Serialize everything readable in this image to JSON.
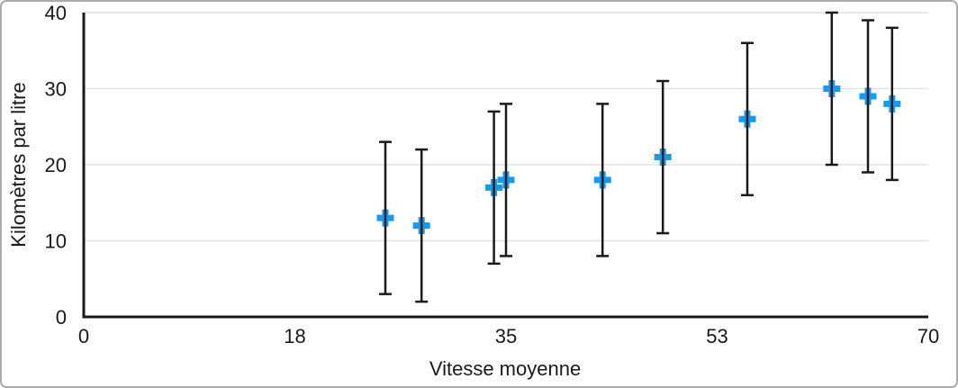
{
  "figure": {
    "background": "#FFFFFF",
    "border_color": "#ABABAB"
  },
  "chart_data": {
    "type": "scatter",
    "title": "",
    "xlabel": "Vitesse moyenne",
    "ylabel": "Kilomètres par litre",
    "xlim": [
      0,
      70
    ],
    "ylim": [
      0,
      40
    ],
    "x_tick_labels": [
      "0",
      "18",
      "35",
      "53",
      "70"
    ],
    "y_tick_labels": [
      "0",
      "10",
      "20",
      "30",
      "40"
    ],
    "grid": "horizontal-only",
    "legend": false,
    "colors": {
      "marker": "#129BF2",
      "error_bar": "#1A1A1A",
      "axis": "#1A1A1A",
      "gridline": "#E2E2E2",
      "text": "#1A1A1A"
    },
    "series": [
      {
        "marker_shape": "plus",
        "error_bars": {
          "direction": "y",
          "plus": 10,
          "minus": 10
        },
        "points": [
          {
            "x": 25,
            "y": 13
          },
          {
            "x": 28,
            "y": 12
          },
          {
            "x": 34,
            "y": 17
          },
          {
            "x": 35,
            "y": 18
          },
          {
            "x": 43,
            "y": 18
          },
          {
            "x": 48,
            "y": 21
          },
          {
            "x": 55,
            "y": 26
          },
          {
            "x": 62,
            "y": 30
          },
          {
            "x": 65,
            "y": 29
          },
          {
            "x": 67,
            "y": 28
          }
        ]
      }
    ]
  }
}
